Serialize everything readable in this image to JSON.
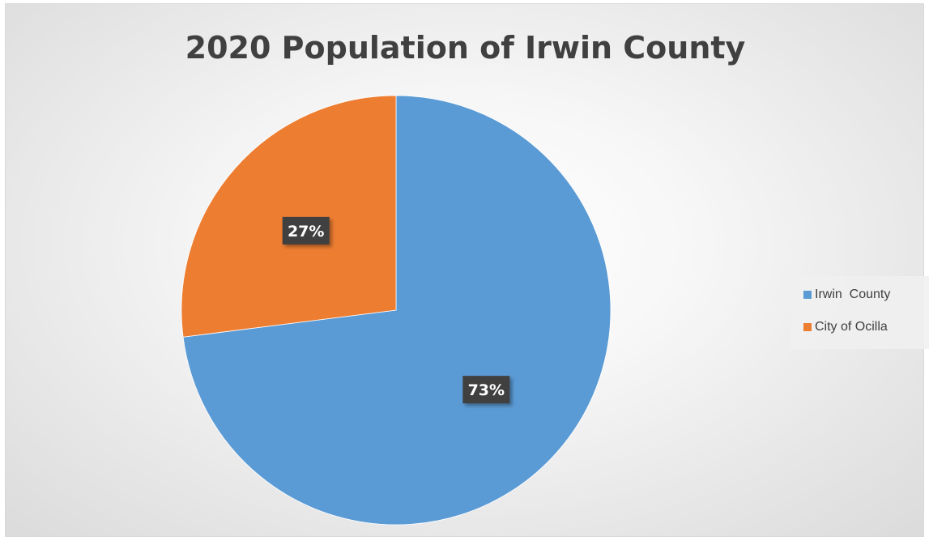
{
  "colors": {
    "irwin_county": "#5b9bd5",
    "city_of_ocilla": "#ed7d31",
    "label_bg": "#404040",
    "label_text": "#ffffff"
  },
  "chart_data": {
    "type": "pie",
    "title": "2020 Population of Irwin County",
    "slices": [
      {
        "name": "Irwin  County",
        "value": 73,
        "label": "73%",
        "color": "#5b9bd5"
      },
      {
        "name": "City of Ocilla",
        "value": 27,
        "label": "27%",
        "color": "#ed7d31"
      }
    ],
    "legend_position": "right",
    "start_angle_deg": 0,
    "direction": "clockwise"
  }
}
